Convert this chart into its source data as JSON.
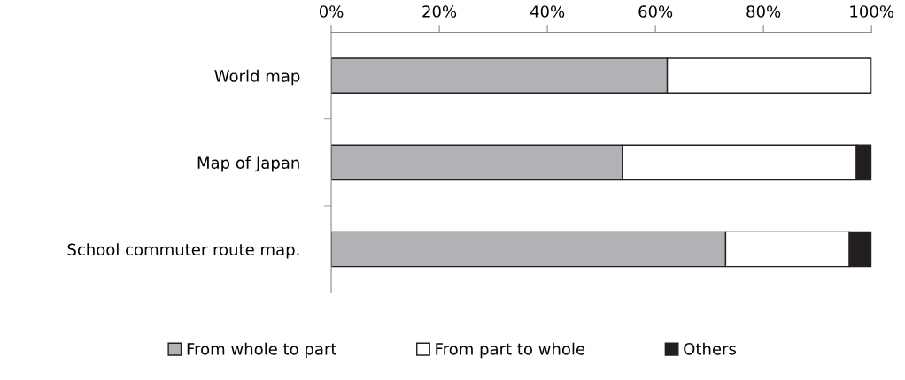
{
  "chart_data": {
    "type": "bar",
    "orientation": "horizontal",
    "stacked": true,
    "categories": [
      "World map",
      "Map of Japan",
      "School commuter route map."
    ],
    "series": [
      {
        "name": "From whole to part",
        "color": "#b1b2b6",
        "values": [
          62.2,
          53.9,
          73.0
        ]
      },
      {
        "name": "From part to whole",
        "color": "#ffffff",
        "values": [
          37.8,
          43.3,
          22.9
        ]
      },
      {
        "name": "Others",
        "color": "#231f20",
        "values": [
          0,
          2.8,
          4.1
        ]
      }
    ],
    "xlim": [
      0,
      100
    ],
    "xticks": [
      {
        "value": 0,
        "label": "0%"
      },
      {
        "value": 20,
        "label": "20%"
      },
      {
        "value": 40,
        "label": "40%"
      },
      {
        "value": 60,
        "label": "60%"
      },
      {
        "value": 80,
        "label": "80%"
      },
      {
        "value": 100,
        "label": "100%"
      }
    ],
    "grid": false,
    "legend": "bottom"
  }
}
